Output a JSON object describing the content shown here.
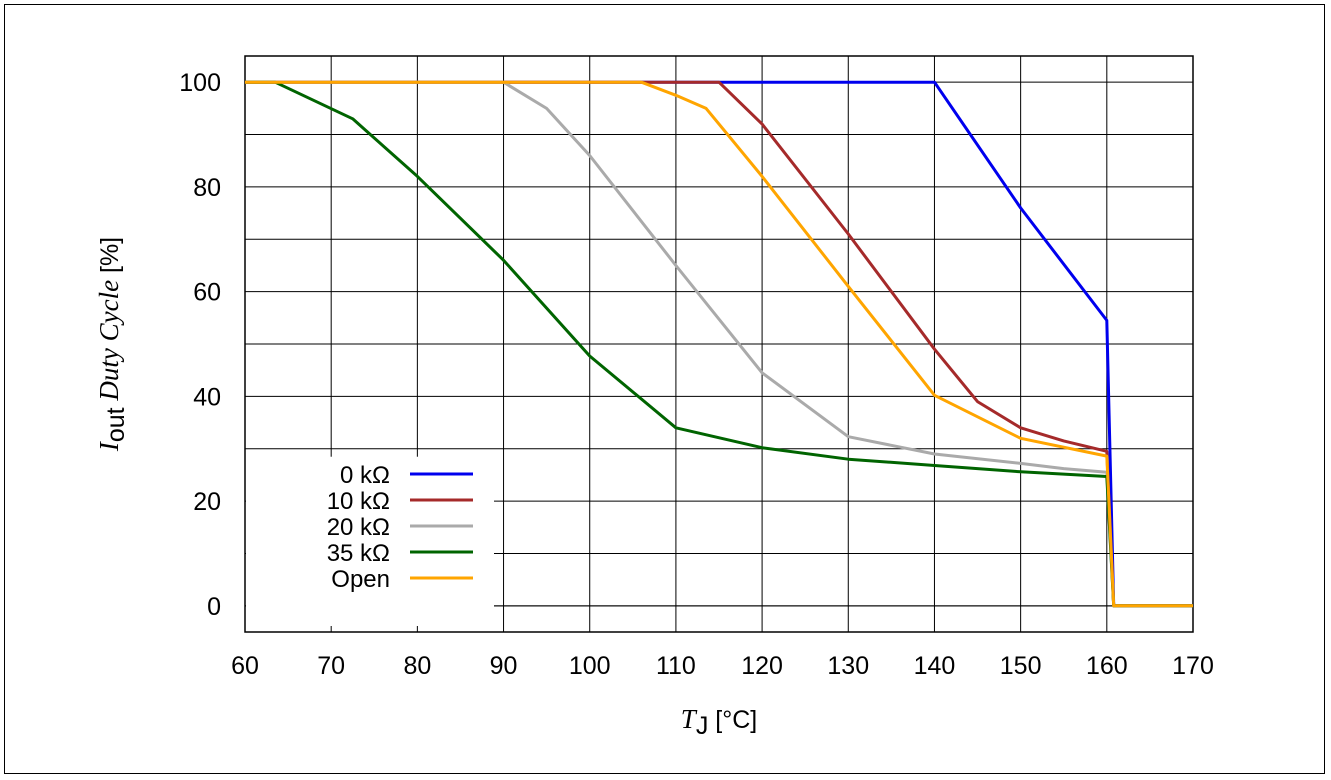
{
  "chart_data": {
    "type": "line",
    "xlim": [
      60,
      170
    ],
    "ylim": [
      -5,
      105
    ],
    "xticks": [
      60,
      70,
      80,
      90,
      100,
      110,
      120,
      130,
      140,
      150,
      160,
      170
    ],
    "yticks": [
      0,
      20,
      40,
      60,
      80,
      100
    ],
    "grid": true,
    "legend_position": "bottom-left",
    "xlabel": {
      "var": "T",
      "sub": "J",
      "unit": " [°C]"
    },
    "ylabel": {
      "var": "I",
      "sub": "out",
      "italic": " Duty Cycle",
      "unit": " [%]"
    },
    "series": [
      {
        "name": "0 kΩ",
        "color": "#0000ee",
        "points": [
          [
            60,
            100
          ],
          [
            140,
            100
          ],
          [
            150,
            76
          ],
          [
            160,
            54.5
          ],
          [
            160.8,
            0
          ],
          [
            170,
            0
          ]
        ]
      },
      {
        "name": "10 kΩ",
        "color": "#a52a2a",
        "points": [
          [
            60,
            100
          ],
          [
            115,
            100
          ],
          [
            120,
            92
          ],
          [
            130,
            71
          ],
          [
            140,
            49
          ],
          [
            145,
            39
          ],
          [
            150,
            34
          ],
          [
            155,
            31.5
          ],
          [
            160,
            29.5
          ],
          [
            160.8,
            0
          ],
          [
            170,
            0
          ]
        ]
      },
      {
        "name": "20 kΩ",
        "color": "#aaaaaa",
        "points": [
          [
            60,
            100
          ],
          [
            90,
            100
          ],
          [
            95,
            95
          ],
          [
            100,
            86
          ],
          [
            110,
            65
          ],
          [
            120,
            44.5
          ],
          [
            130,
            32.3
          ],
          [
            140,
            29
          ],
          [
            150,
            27.2
          ],
          [
            155,
            26.2
          ],
          [
            160,
            25.5
          ],
          [
            160.8,
            0
          ],
          [
            170,
            0
          ]
        ]
      },
      {
        "name": "35 kΩ",
        "color": "#006400",
        "points": [
          [
            60,
            100
          ],
          [
            63.5,
            100
          ],
          [
            72.5,
            93
          ],
          [
            80,
            82
          ],
          [
            90,
            66
          ],
          [
            100,
            47.7
          ],
          [
            110,
            34
          ],
          [
            120,
            30.2
          ],
          [
            130,
            28
          ],
          [
            140,
            26.8
          ],
          [
            150,
            25.6
          ],
          [
            160,
            24.7
          ],
          [
            160.8,
            0
          ],
          [
            170,
            0
          ]
        ]
      },
      {
        "name": "Open",
        "color": "#ffa500",
        "points": [
          [
            60,
            100
          ],
          [
            106,
            100
          ],
          [
            110,
            97.5
          ],
          [
            113.5,
            95
          ],
          [
            120,
            82
          ],
          [
            130,
            61
          ],
          [
            140,
            40.2
          ],
          [
            150,
            32
          ],
          [
            160,
            28.6
          ],
          [
            160.8,
            0
          ],
          [
            170,
            0
          ]
        ]
      }
    ]
  }
}
